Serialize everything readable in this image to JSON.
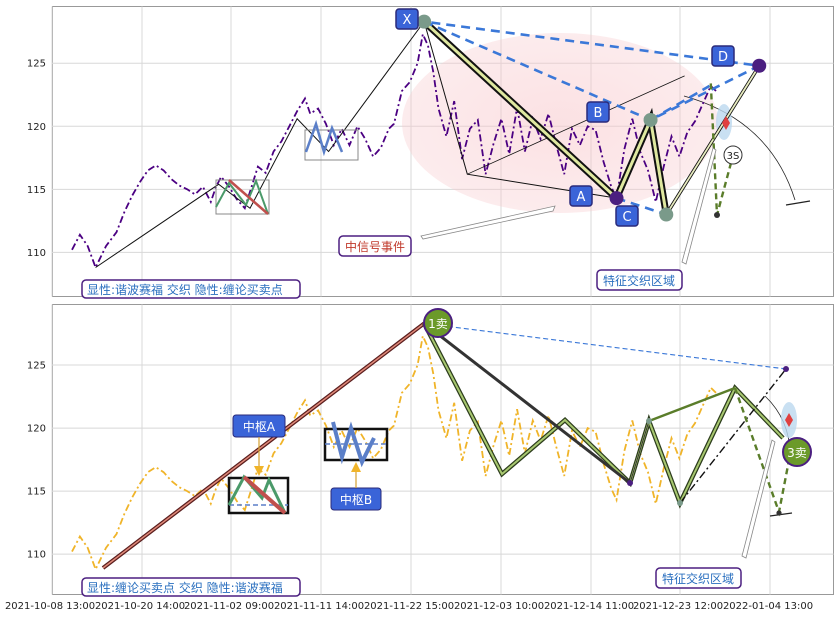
{
  "chart_data": [
    {
      "type": "line",
      "panel": "top",
      "ylim": [
        106.5,
        129.5
      ],
      "yticks": [
        110,
        115,
        120,
        125
      ],
      "grid": true,
      "series": [
        {
          "color": "#4b0082",
          "style": "dash-dot",
          "points": [
            [
              0.0,
              110.2
            ],
            [
              0.6,
              111.4
            ],
            [
              1.2,
              110.5
            ],
            [
              1.8,
              108.8
            ],
            [
              2.6,
              110.5
            ],
            [
              3.4,
              111.6
            ],
            [
              4.0,
              113.2
            ],
            [
              4.6,
              114.5
            ],
            [
              5.2,
              115.6
            ],
            [
              5.8,
              116.5
            ],
            [
              6.4,
              116.9
            ],
            [
              7.0,
              116.5
            ],
            [
              7.6,
              115.8
            ],
            [
              8.2,
              115.3
            ],
            [
              8.8,
              115.0
            ],
            [
              9.4,
              114.6
            ],
            [
              10.0,
              115.2
            ],
            [
              10.6,
              114.0
            ],
            [
              11.0,
              115.2
            ],
            [
              11.4,
              116.0
            ],
            [
              12.0,
              115.2
            ],
            [
              12.6,
              114.2
            ],
            [
              13.2,
              113.5
            ],
            [
              13.6,
              114.8
            ],
            [
              14.2,
              116.8
            ],
            [
              14.8,
              116.3
            ],
            [
              15.4,
              118.0
            ],
            [
              16.0,
              118.8
            ],
            [
              16.6,
              120.0
            ],
            [
              17.2,
              121.2
            ],
            [
              17.8,
              122.2
            ],
            [
              18.2,
              121.0
            ],
            [
              18.8,
              121.4
            ],
            [
              19.4,
              120.2
            ],
            [
              20.0,
              118.5
            ],
            [
              20.6,
              119.8
            ],
            [
              21.2,
              118.5
            ],
            [
              21.8,
              120.0
            ],
            [
              22.4,
              119.0
            ],
            [
              23.0,
              117.6
            ],
            [
              23.6,
              118.3
            ],
            [
              24.2,
              119.8
            ],
            [
              24.6,
              120.2
            ],
            [
              25.2,
              122.8
            ],
            [
              25.8,
              123.5
            ],
            [
              26.4,
              125.0
            ],
            [
              26.8,
              127.3
            ],
            [
              27.2,
              126.4
            ],
            [
              27.6,
              124.3
            ],
            [
              28.0,
              121.4
            ],
            [
              28.6,
              119.2
            ],
            [
              29.2,
              122.0
            ],
            [
              29.8,
              117.4
            ],
            [
              30.4,
              119.8
            ],
            [
              31.0,
              120.5
            ],
            [
              31.6,
              116.2
            ],
            [
              32.2,
              118.6
            ],
            [
              32.8,
              120.6
            ],
            [
              33.4,
              117.8
            ],
            [
              34.0,
              121.5
            ],
            [
              34.6,
              118.0
            ],
            [
              35.2,
              120.6
            ],
            [
              35.8,
              119.0
            ],
            [
              36.4,
              121.0
            ],
            [
              37.0,
              118.5
            ],
            [
              37.6,
              116.2
            ],
            [
              38.2,
              119.8
            ],
            [
              38.8,
              118.5
            ],
            [
              39.4,
              120.0
            ],
            [
              40.0,
              119.7
            ],
            [
              40.6,
              117.2
            ],
            [
              41.2,
              115.2
            ],
            [
              41.6,
              114.3
            ],
            [
              42.2,
              118.2
            ],
            [
              42.8,
              120.6
            ],
            [
              43.4,
              118.0
            ],
            [
              44.0,
              116.5
            ],
            [
              44.6,
              114.0
            ],
            [
              45.2,
              116.8
            ],
            [
              45.8,
              119.2
            ],
            [
              46.4,
              117.6
            ],
            [
              47.0,
              119.5
            ],
            [
              47.6,
              120.4
            ],
            [
              48.2,
              121.8
            ],
            [
              48.8,
              123.2
            ],
            [
              49.2,
              122.8
            ]
          ]
        }
      ],
      "harmonic_points": {
        "X": [
          26.9,
          128.3
        ],
        "A": [
          41.6,
          114.3
        ],
        "B": [
          44.2,
          120.5
        ],
        "C": [
          45.4,
          113.0
        ],
        "D": [
          52.5,
          124.8
        ]
      },
      "annotations": [
        "显性:谐波赛福 交织 隐性:缠论买卖点",
        "中信号事件",
        "特征交织区域",
        "3S"
      ]
    },
    {
      "type": "line",
      "panel": "bottom",
      "ylim": [
        106.8,
        129.8
      ],
      "yticks": [
        110,
        115,
        120,
        125
      ],
      "xtick_labels": [
        "2021-10-08 13:00",
        "2021-10-20 14:00",
        "2021-11-02 09:00",
        "2021-11-11 14:00",
        "2021-11-22 15:00",
        "2021-12-03 10:00",
        "2021-12-14 11:00",
        "2021-12-23 12:00",
        "2022-01-04 13:00"
      ],
      "grid": true,
      "series": [
        {
          "color": "#f0b429",
          "style": "dash-dot",
          "points": [
            [
              0.0,
              110.2
            ],
            [
              0.6,
              111.4
            ],
            [
              1.2,
              110.5
            ],
            [
              1.8,
              108.8
            ],
            [
              2.6,
              110.5
            ],
            [
              3.4,
              111.6
            ],
            [
              4.0,
              113.2
            ],
            [
              4.6,
              114.5
            ],
            [
              5.2,
              115.6
            ],
            [
              5.8,
              116.5
            ],
            [
              6.4,
              116.9
            ],
            [
              7.0,
              116.5
            ],
            [
              7.6,
              115.8
            ],
            [
              8.2,
              115.3
            ],
            [
              8.8,
              115.0
            ],
            [
              9.4,
              114.6
            ],
            [
              10.0,
              115.2
            ],
            [
              10.6,
              114.0
            ],
            [
              11.0,
              115.2
            ],
            [
              11.4,
              116.0
            ],
            [
              12.0,
              115.2
            ],
            [
              12.6,
              114.2
            ],
            [
              13.2,
              113.5
            ],
            [
              13.6,
              114.8
            ],
            [
              14.2,
              116.8
            ],
            [
              14.8,
              116.3
            ],
            [
              15.4,
              118.0
            ],
            [
              16.0,
              118.8
            ],
            [
              16.6,
              120.0
            ],
            [
              17.2,
              121.2
            ],
            [
              17.8,
              122.2
            ],
            [
              18.2,
              121.0
            ],
            [
              18.8,
              121.4
            ],
            [
              19.4,
              120.2
            ],
            [
              20.0,
              118.5
            ],
            [
              20.6,
              119.8
            ],
            [
              21.2,
              118.5
            ],
            [
              21.8,
              120.0
            ],
            [
              22.4,
              119.0
            ],
            [
              23.0,
              117.6
            ],
            [
              23.6,
              118.3
            ],
            [
              24.2,
              119.8
            ],
            [
              24.6,
              120.2
            ],
            [
              25.2,
              122.8
            ],
            [
              25.8,
              123.5
            ],
            [
              26.4,
              125.0
            ],
            [
              26.8,
              127.3
            ],
            [
              27.2,
              126.4
            ],
            [
              27.6,
              124.3
            ],
            [
              28.0,
              121.4
            ],
            [
              28.6,
              119.2
            ],
            [
              29.2,
              122.0
            ],
            [
              29.8,
              117.4
            ],
            [
              30.4,
              119.8
            ],
            [
              31.0,
              120.5
            ],
            [
              31.6,
              116.2
            ],
            [
              32.2,
              118.6
            ],
            [
              32.8,
              120.6
            ],
            [
              33.4,
              117.8
            ],
            [
              34.0,
              121.5
            ],
            [
              34.6,
              118.0
            ],
            [
              35.2,
              120.6
            ],
            [
              35.8,
              119.0
            ],
            [
              36.4,
              121.0
            ],
            [
              37.0,
              118.5
            ],
            [
              37.6,
              116.2
            ],
            [
              38.2,
              119.8
            ],
            [
              38.8,
              118.5
            ],
            [
              39.4,
              120.0
            ],
            [
              40.0,
              119.7
            ],
            [
              40.6,
              117.2
            ],
            [
              41.2,
              115.2
            ],
            [
              41.6,
              114.3
            ],
            [
              42.2,
              118.2
            ],
            [
              42.8,
              120.6
            ],
            [
              43.4,
              118.0
            ],
            [
              44.0,
              116.5
            ],
            [
              44.6,
              114.0
            ],
            [
              45.2,
              116.8
            ],
            [
              45.8,
              119.2
            ],
            [
              46.4,
              117.6
            ],
            [
              47.0,
              119.5
            ],
            [
              47.6,
              120.4
            ],
            [
              48.2,
              121.8
            ],
            [
              48.8,
              123.2
            ],
            [
              49.2,
              122.8
            ]
          ]
        }
      ],
      "signals": {
        "sell_1": [
          26.9,
          128.3
        ],
        "sell_3": [
          52.2,
          118.2
        ]
      },
      "annotations": [
        "中枢A",
        "中枢B",
        "显性:缠论买卖点 交织 隐性:谐波赛福",
        "特征交织区域",
        "1卖",
        "3卖"
      ]
    }
  ]
}
